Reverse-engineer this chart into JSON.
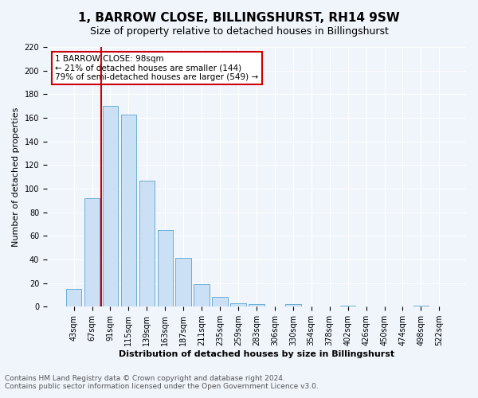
{
  "title": "1, BARROW CLOSE, BILLINGSHURST, RH14 9SW",
  "subtitle": "Size of property relative to detached houses in Billingshurst",
  "xlabel": "Distribution of detached houses by size in Billingshurst",
  "ylabel": "Number of detached properties",
  "bar_labels": [
    "43sqm",
    "67sqm",
    "91sqm",
    "115sqm",
    "139sqm",
    "163sqm",
    "187sqm",
    "211sqm",
    "235sqm",
    "259sqm",
    "283sqm",
    "306sqm",
    "330sqm",
    "354sqm",
    "378sqm",
    "402sqm",
    "426sqm",
    "450sqm",
    "474sqm",
    "498sqm",
    "522sqm"
  ],
  "bar_values": [
    15,
    92,
    170,
    163,
    107,
    65,
    41,
    19,
    8,
    3,
    2,
    0,
    2,
    0,
    0,
    1,
    0,
    0,
    0,
    1,
    0
  ],
  "bar_color": "#cce0f5",
  "bar_edge_color": "#6aaed6",
  "property_line_x": 1,
  "annotation_title": "1 BARROW CLOSE: 98sqm",
  "annotation_line1": "← 21% of detached houses are smaller (144)",
  "annotation_line2": "79% of semi-detached houses are larger (549) →",
  "annotation_box_color": "#ffffff",
  "annotation_box_edge": "#cc0000",
  "vertical_line_color": "#cc0000",
  "ylim": [
    0,
    220
  ],
  "yticks": [
    0,
    20,
    40,
    60,
    80,
    100,
    120,
    140,
    160,
    180,
    200,
    220
  ],
  "footer_line1": "Contains HM Land Registry data © Crown copyright and database right 2024.",
  "footer_line2": "Contains public sector information licensed under the Open Government Licence v3.0.",
  "bg_color": "#f0f4fb",
  "grid_color": "#ffffff",
  "title_fontsize": 11,
  "subtitle_fontsize": 9,
  "axis_label_fontsize": 8,
  "tick_fontsize": 7,
  "annotation_fontsize": 7.5,
  "footer_fontsize": 6.5
}
